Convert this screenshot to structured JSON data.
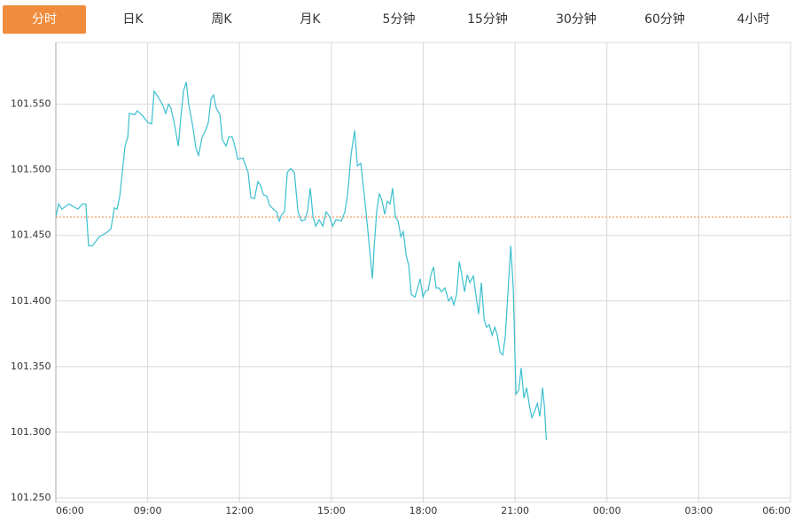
{
  "tabs": [
    "分时",
    "日K",
    "周K",
    "月K",
    "5分钟",
    "15分钟",
    "30分钟",
    "60分钟",
    "4小时"
  ],
  "active_tab": 0,
  "chart_data": {
    "type": "line",
    "color": "#3bbfcf",
    "ref_line": 101.464,
    "ref_color": "#f08c3c",
    "above_color": "#d0021b",
    "below_color": "#1a8a1a",
    "grid": true,
    "xlim": [
      6,
      30
    ],
    "xticks": [
      {
        "value": 6,
        "label": "06:00"
      },
      {
        "value": 9,
        "label": "09:00"
      },
      {
        "value": 12,
        "label": "12:00"
      },
      {
        "value": 15,
        "label": "15:00"
      },
      {
        "value": 18,
        "label": "18:00"
      },
      {
        "value": 21,
        "label": "21:00"
      },
      {
        "value": 24,
        "label": "00:00"
      },
      {
        "value": 27,
        "label": "03:00"
      },
      {
        "value": 30,
        "label": "06:00"
      }
    ],
    "ylim": [
      101.2466,
      101.597
    ],
    "yticks": [
      {
        "value": 101.25,
        "label": "101.250"
      },
      {
        "value": 101.3,
        "label": "101.300"
      },
      {
        "value": 101.35,
        "label": "101.350"
      },
      {
        "value": 101.4,
        "label": "101.400"
      },
      {
        "value": 101.45,
        "label": "101.450"
      },
      {
        "value": 101.5,
        "label": "101.500"
      },
      {
        "value": 101.55,
        "label": "101.550"
      }
    ],
    "x": [
      6.0,
      6.09,
      6.2,
      6.43,
      6.72,
      6.87,
      6.98,
      7.07,
      7.19,
      7.42,
      7.65,
      7.8,
      7.91,
      8.0,
      8.09,
      8.17,
      8.26,
      8.35,
      8.4,
      8.58,
      8.66,
      8.84,
      9.01,
      9.13,
      9.21,
      9.3,
      9.48,
      9.59,
      9.68,
      9.76,
      9.88,
      10.0,
      10.08,
      10.17,
      10.26,
      10.34,
      10.46,
      10.58,
      10.66,
      10.78,
      10.89,
      10.98,
      11.07,
      11.15,
      11.24,
      11.36,
      11.44,
      11.56,
      11.65,
      11.76,
      11.85,
      11.94,
      12.11,
      12.28,
      12.37,
      12.49,
      12.6,
      12.69,
      12.78,
      12.89,
      12.98,
      13.1,
      13.21,
      13.3,
      13.38,
      13.47,
      13.56,
      13.67,
      13.79,
      13.91,
      14.02,
      14.14,
      14.22,
      14.31,
      14.4,
      14.49,
      14.6,
      14.72,
      14.83,
      14.95,
      15.04,
      15.15,
      15.33,
      15.44,
      15.53,
      15.64,
      15.76,
      15.85,
      15.96,
      16.08,
      16.19,
      16.28,
      16.34,
      16.4,
      16.48,
      16.57,
      16.66,
      16.74,
      16.83,
      16.92,
      17.0,
      17.09,
      17.18,
      17.27,
      17.35,
      17.44,
      17.53,
      17.61,
      17.73,
      17.82,
      17.9,
      17.99,
      18.08,
      18.16,
      18.25,
      18.34,
      18.42,
      18.51,
      18.6,
      18.71,
      18.83,
      18.92,
      19.0,
      19.09,
      19.18,
      19.26,
      19.35,
      19.44,
      19.52,
      19.64,
      19.73,
      19.81,
      19.9,
      19.99,
      20.07,
      20.16,
      20.25,
      20.34,
      20.42,
      20.51,
      20.6,
      20.68,
      20.77,
      20.86,
      20.94,
      21.03,
      21.12,
      21.2,
      21.29,
      21.38,
      21.47,
      21.55,
      21.64,
      21.73,
      21.81,
      21.9,
      21.96,
      22.02
    ],
    "values": [
      101.464,
      101.474,
      101.47,
      101.474,
      101.47,
      101.474,
      101.474,
      101.442,
      101.442,
      101.449,
      101.452,
      101.455,
      101.471,
      101.47,
      101.48,
      101.498,
      101.518,
      101.525,
      101.543,
      101.542,
      101.545,
      101.541,
      101.536,
      101.535,
      101.56,
      101.557,
      101.55,
      101.543,
      101.55,
      101.547,
      101.534,
      101.518,
      101.539,
      101.56,
      101.567,
      101.55,
      101.535,
      101.516,
      101.511,
      101.525,
      101.53,
      101.536,
      101.554,
      101.557,
      101.547,
      101.542,
      101.523,
      101.518,
      101.525,
      101.525,
      101.518,
      101.508,
      101.509,
      101.498,
      101.479,
      101.478,
      101.491,
      101.488,
      101.481,
      101.48,
      101.473,
      101.47,
      101.468,
      101.461,
      101.466,
      101.468,
      101.498,
      101.501,
      101.498,
      101.468,
      101.461,
      101.462,
      101.468,
      101.486,
      101.464,
      101.457,
      101.462,
      101.457,
      101.468,
      101.464,
      101.457,
      101.462,
      101.461,
      101.468,
      101.481,
      101.511,
      101.53,
      101.503,
      101.505,
      101.48,
      101.454,
      101.432,
      101.417,
      101.442,
      101.468,
      101.482,
      101.476,
      101.466,
      101.476,
      101.474,
      101.486,
      101.464,
      101.461,
      101.449,
      101.453,
      101.435,
      101.427,
      101.405,
      101.403,
      101.41,
      101.417,
      101.403,
      101.408,
      101.408,
      101.42,
      101.426,
      101.41,
      101.41,
      101.407,
      101.41,
      101.4,
      101.403,
      101.397,
      101.405,
      101.43,
      101.42,
      101.407,
      101.42,
      101.414,
      101.419,
      101.403,
      101.39,
      101.414,
      101.386,
      101.38,
      101.382,
      101.374,
      101.38,
      101.374,
      101.361,
      101.359,
      101.373,
      101.407,
      101.442,
      101.41,
      101.329,
      101.332,
      101.349,
      101.326,
      101.334,
      101.32,
      101.311,
      101.316,
      101.322,
      101.312,
      101.334,
      101.319,
      101.294
    ]
  }
}
